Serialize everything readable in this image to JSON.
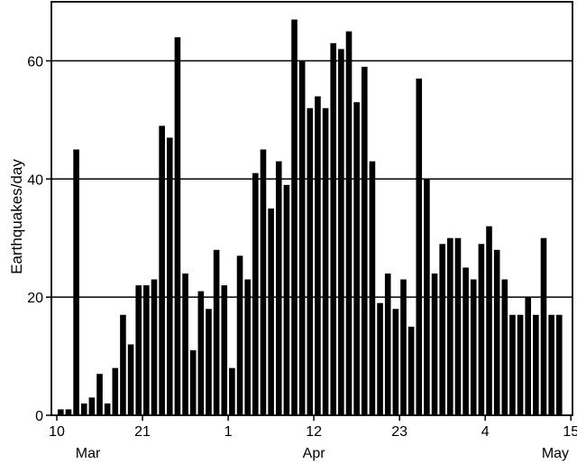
{
  "chart_data": {
    "type": "bar",
    "title": "",
    "xlabel": "",
    "ylabel": "Earthquakes/day",
    "ylim": [
      0,
      70
    ],
    "y_ticks": [
      0,
      20,
      40,
      60
    ],
    "gridlines": "horizontal at 20, 40, 60",
    "x_ticks": [
      {
        "index": 0,
        "label": "10"
      },
      {
        "index": 11,
        "label": "21"
      },
      {
        "index": 22,
        "label": "1"
      },
      {
        "index": 33,
        "label": "12"
      },
      {
        "index": 44,
        "label": "23"
      },
      {
        "index": 55,
        "label": "4"
      },
      {
        "index": 66,
        "label": "15"
      }
    ],
    "month_labels": [
      {
        "index": 4,
        "label": "Mar"
      },
      {
        "index": 33,
        "label": "Apr"
      },
      {
        "index": 64,
        "label": "May"
      }
    ],
    "bar_color": "#000000",
    "values": [
      1,
      1,
      45,
      2,
      3,
      7,
      2,
      8,
      17,
      12,
      22,
      22,
      23,
      49,
      47,
      64,
      24,
      11,
      21,
      18,
      28,
      22,
      8,
      27,
      23,
      41,
      45,
      35,
      43,
      39,
      67,
      60,
      52,
      54,
      52,
      63,
      62,
      65,
      53,
      59,
      43,
      19,
      24,
      18,
      23,
      15,
      57,
      40,
      24,
      29,
      30,
      30,
      25,
      23,
      29,
      32,
      28,
      23,
      17,
      17,
      20,
      17,
      30,
      17,
      17
    ]
  }
}
